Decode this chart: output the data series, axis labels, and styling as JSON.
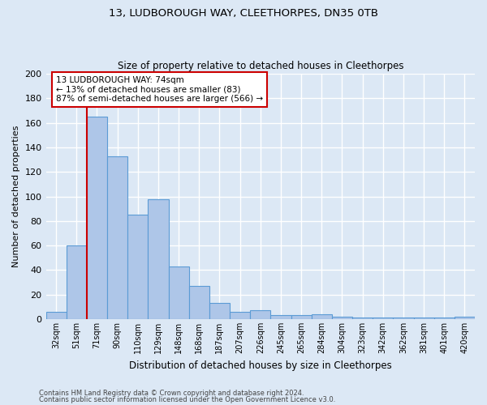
{
  "title1": "13, LUDBOROUGH WAY, CLEETHORPES, DN35 0TB",
  "title2": "Size of property relative to detached houses in Cleethorpes",
  "xlabel": "Distribution of detached houses by size in Cleethorpes",
  "ylabel": "Number of detached properties",
  "categories": [
    "32sqm",
    "51sqm",
    "71sqm",
    "90sqm",
    "110sqm",
    "129sqm",
    "148sqm",
    "168sqm",
    "187sqm",
    "207sqm",
    "226sqm",
    "245sqm",
    "265sqm",
    "284sqm",
    "304sqm",
    "323sqm",
    "342sqm",
    "362sqm",
    "381sqm",
    "401sqm",
    "420sqm"
  ],
  "values": [
    6,
    60,
    165,
    133,
    85,
    98,
    43,
    27,
    13,
    6,
    7,
    3,
    3,
    4,
    2,
    1,
    1,
    1,
    1,
    1,
    2
  ],
  "bar_color": "#aec6e8",
  "bar_edge_color": "#5b9bd5",
  "vline_bin_index": 2,
  "vline_color": "#cc0000",
  "annotation_text": "13 LUDBOROUGH WAY: 74sqm\n← 13% of detached houses are smaller (83)\n87% of semi-detached houses are larger (566) →",
  "annotation_box_color": "#ffffff",
  "annotation_box_edge": "#cc0000",
  "ylim": [
    0,
    200
  ],
  "yticks": [
    0,
    20,
    40,
    60,
    80,
    100,
    120,
    140,
    160,
    180,
    200
  ],
  "footer1": "Contains HM Land Registry data © Crown copyright and database right 2024.",
  "footer2": "Contains public sector information licensed under the Open Government Licence v3.0.",
  "background_color": "#dce8f5",
  "grid_color": "#ffffff"
}
